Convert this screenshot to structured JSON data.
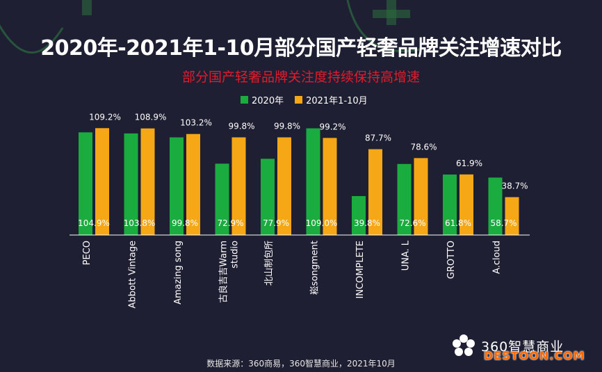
{
  "title": "2020年-2021年1-10月部分国产轻奢品牌关注增速对比",
  "subtitle": "部分国产轻奢品牌关注度持续保持高增速",
  "source": "数据来源：360商易，360智慧商业，2021年10月",
  "logo_text": "360智慧商业",
  "watermark": "DESTOON.COM",
  "colors": {
    "series_2020": "#1aac3f",
    "series_2021": "#f6a715",
    "background": "#1f1f33"
  },
  "chart_data": {
    "type": "bar",
    "title": "2020年-2021年1-10月部分国产轻奢品牌关注增速对比",
    "xlabel": "",
    "ylabel": "",
    "ylim": [
      0,
      120
    ],
    "grid": false,
    "legend_position": "top",
    "categories": [
      "PECO",
      "Abbott Vintage",
      "Amazing song",
      "古良吉吉Warm studio",
      "北山制包所",
      "崧songment",
      "INCOMPLETE",
      "UNA. L",
      "GROTTO",
      "A.cloud"
    ],
    "category_lines": [
      [
        "PECO"
      ],
      [
        "Abbott Vintage"
      ],
      [
        "Amazing song"
      ],
      [
        "古良吉吉Warm",
        "studio"
      ],
      [
        "北山制包所"
      ],
      [
        "崧songment"
      ],
      [
        "INCOMPLETE"
      ],
      [
        "UNA. L"
      ],
      [
        "GROTTO"
      ],
      [
        "A.cloud"
      ]
    ],
    "series": [
      {
        "name": "2020年",
        "values": [
          104.9,
          103.8,
          99.8,
          72.9,
          77.9,
          109.0,
          39.8,
          72.6,
          61.8,
          58.7
        ],
        "labels": [
          "104.9%",
          "103.8%",
          "99.8%",
          "72.9%",
          "77.9%",
          "109.0%",
          "39.8%",
          "72.6%",
          "61.8%",
          "58.7%"
        ]
      },
      {
        "name": "2021年1-10月",
        "values": [
          109.2,
          108.9,
          103.2,
          99.8,
          99.8,
          99.2,
          87.7,
          78.6,
          61.9,
          38.7
        ],
        "labels": [
          "109.2%",
          "108.9%",
          "103.2%",
          "99.8%",
          "99.8%",
          "99.2%",
          "87.7%",
          "78.6%",
          "61.9%",
          "38.7%"
        ]
      }
    ]
  }
}
